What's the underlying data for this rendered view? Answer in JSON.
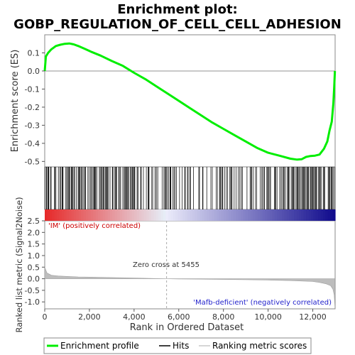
{
  "chart_data": {
    "type": "line",
    "title_line1": "Enrichment plot:",
    "title_line2": "GOBP_REGULATION_OF_CELL_CELL_ADHESION",
    "xlabel": "Rank in Ordered Dataset",
    "ylabel_top": "Enrichment score (ES)",
    "ylabel_bottom": "Ranked list metric (Signal2Noise)",
    "xlim": [
      0,
      13000
    ],
    "x_ticks": [
      0,
      2000,
      4000,
      6000,
      8000,
      10000,
      12000
    ],
    "x_tick_labels": [
      "0",
      "2,000",
      "4,000",
      "6,000",
      "8,000",
      "10,000",
      "12,000"
    ],
    "es_ylim": [
      -0.53,
      0.2
    ],
    "es_ticks": [
      0.1,
      0.0,
      -0.1,
      -0.2,
      -0.3,
      -0.4,
      -0.5
    ],
    "es_tick_labels": [
      "0.1",
      "0.0",
      "-0.1",
      "-0.2",
      "-0.3",
      "-0.4",
      "-0.5"
    ],
    "metric_ylim": [
      -1.3,
      2.5
    ],
    "metric_ticks": [
      2.5,
      2.0,
      1.5,
      1.0,
      0.5,
      0.0,
      -0.5,
      -1.0
    ],
    "metric_tick_labels": [
      "2.5",
      "2.0",
      "1.5",
      "1.0",
      "0.5",
      "0.0",
      "-0.5",
      "-1.0"
    ],
    "zero_cross_rank": 5455,
    "annotations": {
      "positive": "'IM' (positively correlated)",
      "negative": "'Mafb-deficient' (negatively correlated)",
      "zero_cross": "Zero cross at 5455"
    },
    "es_series": {
      "name": "Enrichment profile",
      "x": [
        0,
        50,
        150,
        300,
        500,
        700,
        900,
        1100,
        1300,
        1500,
        1800,
        2100,
        2500,
        3000,
        3500,
        4000,
        4500,
        5000,
        5500,
        6000,
        6500,
        7000,
        7500,
        8000,
        8500,
        9000,
        9500,
        10000,
        10500,
        11000,
        11300,
        11500,
        11700,
        11900,
        12100,
        12300,
        12500,
        12650,
        12750,
        12850,
        12920,
        12960,
        12990
      ],
      "y": [
        0.0,
        0.08,
        0.1,
        0.12,
        0.138,
        0.145,
        0.15,
        0.152,
        0.147,
        0.138,
        0.122,
        0.105,
        0.085,
        0.055,
        0.028,
        -0.01,
        -0.045,
        -0.085,
        -0.125,
        -0.165,
        -0.205,
        -0.245,
        -0.285,
        -0.32,
        -0.355,
        -0.39,
        -0.425,
        -0.452,
        -0.468,
        -0.485,
        -0.49,
        -0.488,
        -0.475,
        -0.47,
        -0.468,
        -0.462,
        -0.43,
        -0.39,
        -0.33,
        -0.28,
        -0.18,
        -0.09,
        0.0
      ]
    },
    "hit_density": [
      {
        "from": 0,
        "to": 4000,
        "density": 0.75
      },
      {
        "from": 4000,
        "to": 6800,
        "density": 0.6
      },
      {
        "from": 6800,
        "to": 9000,
        "density": 0.4
      },
      {
        "from": 9000,
        "to": 10500,
        "density": 0.5
      },
      {
        "from": 10500,
        "to": 11500,
        "density": 0.6
      },
      {
        "from": 11500,
        "to": 13000,
        "density": 0.9
      }
    ],
    "metric_series": {
      "x": [
        0,
        100,
        300,
        600,
        1000,
        1500,
        2000,
        3000,
        4000,
        5000,
        5455,
        6000,
        7000,
        8000,
        9000,
        10000,
        11000,
        11500,
        12000,
        12300,
        12600,
        12800,
        12900,
        12960,
        12990
      ],
      "y": [
        0.5,
        0.25,
        0.15,
        0.12,
        0.1,
        0.08,
        0.07,
        0.05,
        0.03,
        0.01,
        0.0,
        -0.01,
        -0.02,
        -0.03,
        -0.04,
        -0.06,
        -0.08,
        -0.1,
        -0.12,
        -0.16,
        -0.22,
        -0.3,
        -0.45,
        -0.7,
        -1.2
      ]
    },
    "legend": [
      {
        "label": "Enrichment profile",
        "color": "#00ee00"
      },
      {
        "label": "Hits",
        "color": "#000000"
      },
      {
        "label": "Ranking metric scores",
        "color": "#c8c8c8"
      }
    ],
    "colors": {
      "es_line": "#00ee00",
      "hit": "#000000",
      "metric_fill": "#bdbdbd",
      "positive_text": "#cc0000",
      "negative_text": "#2222cc",
      "grid_zero": "#909090"
    }
  }
}
